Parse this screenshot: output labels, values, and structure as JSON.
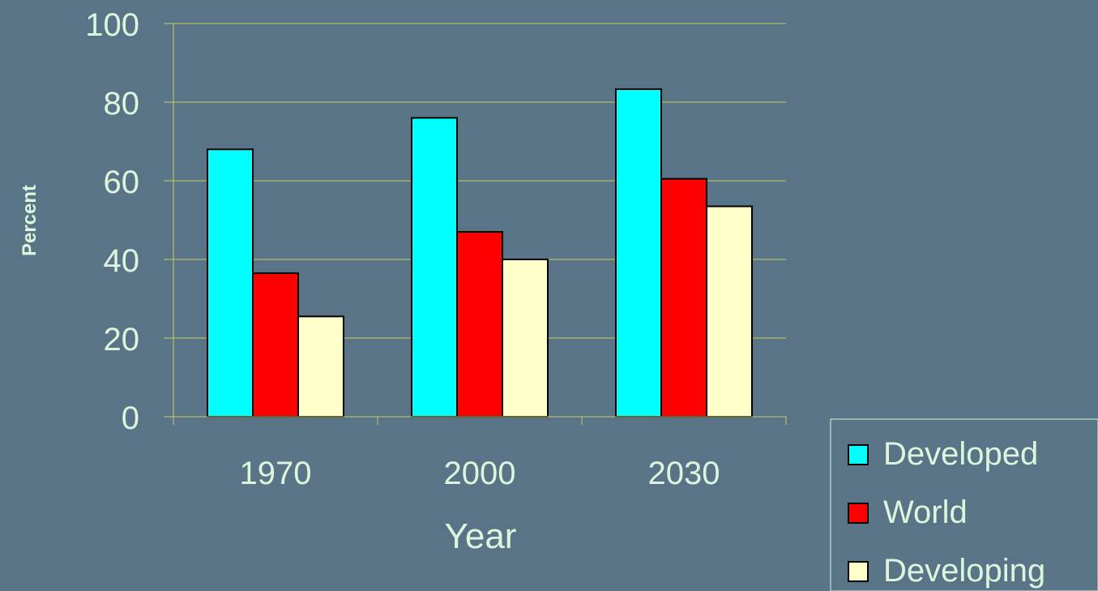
{
  "chart_data": {
    "type": "bar",
    "title": "",
    "xlabel": "Year",
    "ylabel": "Percent",
    "categories": [
      "1970",
      "2000",
      "2030"
    ],
    "series": [
      {
        "name": "Developed",
        "values": [
          68,
          76,
          83.3
        ],
        "color": "#00FFFF"
      },
      {
        "name": "World",
        "values": [
          36.5,
          47,
          60.5
        ],
        "color": "#FF0000"
      },
      {
        "name": "Developing",
        "values": [
          25.5,
          40,
          53.5
        ],
        "color": "#FFFFCC"
      }
    ],
    "ylim": [
      0,
      100
    ],
    "yticks": [
      "0",
      "20",
      "40",
      "60",
      "80",
      "100"
    ],
    "grid": true,
    "legend": "bottom-right",
    "colors": {
      "background": "#597487",
      "text": "#DDF5DD",
      "grid": "#CCCC66",
      "bar_outline": "#000000"
    }
  }
}
